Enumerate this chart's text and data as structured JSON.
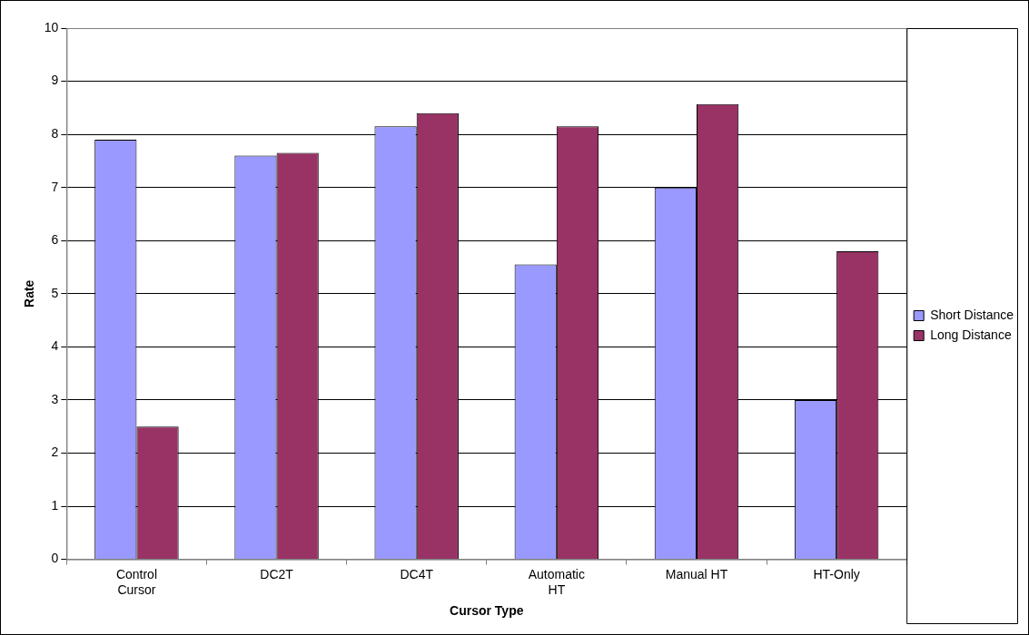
{
  "chart_data": {
    "type": "bar",
    "xlabel": "Cursor Type",
    "ylabel": "Rate",
    "categories": [
      "Control Cursor",
      "DC2T",
      "DC4T",
      "Automatic HT",
      "Manual HT",
      "HT-Only"
    ],
    "series": [
      {
        "name": "Short Distance",
        "color": "#9999ff",
        "values": [
          7.9,
          7.6,
          8.15,
          5.55,
          7.0,
          3.0
        ]
      },
      {
        "name": "Long Distance",
        "color": "#993366",
        "values": [
          2.5,
          7.65,
          8.4,
          8.15,
          8.57,
          5.8
        ]
      }
    ],
    "ylim": [
      0,
      10
    ],
    "yticks": [
      0,
      1,
      2,
      3,
      4,
      5,
      6,
      7,
      8,
      9,
      10
    ],
    "grid": "y",
    "legend": "right"
  }
}
